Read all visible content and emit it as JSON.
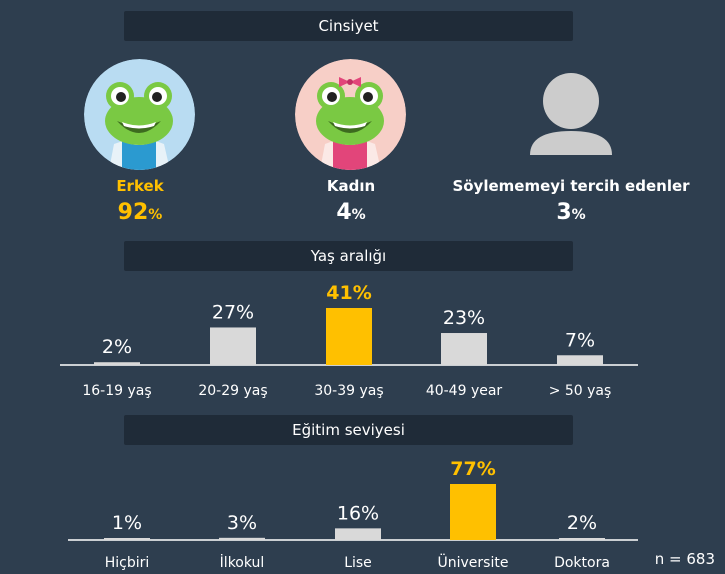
{
  "sections": {
    "gender": "Cinsiyet",
    "age": "Yaş aralığı",
    "education": "Eğitim seviyesi"
  },
  "gender": [
    {
      "label": "Erkek",
      "value": "92",
      "unit": "%",
      "icon": "frog-male-avatar",
      "highlight": true
    },
    {
      "label": "Kadın",
      "value": "4",
      "unit": "%",
      "icon": "frog-female-avatar",
      "highlight": false
    },
    {
      "label": "Söylememeyi tercih edenler",
      "value": "3",
      "unit": "%",
      "icon": "person-silhouette-icon",
      "highlight": false
    }
  ],
  "chart_data": [
    {
      "type": "bar",
      "title": "Yaş aralığı",
      "categories": [
        "16-19 yaş",
        "20-29 yaş",
        "30-39 yaş",
        "40-49 year",
        "> 50 yaş"
      ],
      "values": [
        2,
        27,
        41,
        23,
        7
      ],
      "labels": [
        "2%",
        "27%",
        "41%",
        "23%",
        "7%"
      ],
      "highlight_index": 2,
      "ylim": [
        0,
        41
      ]
    },
    {
      "type": "bar",
      "title": "Eğitim seviyesi",
      "categories": [
        "Hiçbiri",
        "İlkokul",
        "Lise",
        "Üniversite",
        "Doktora"
      ],
      "values": [
        1,
        3,
        16,
        77,
        2
      ],
      "labels": [
        "1%",
        "3%",
        "16%",
        "77%",
        "2%"
      ],
      "highlight_index": 3,
      "ylim": [
        0,
        77
      ]
    }
  ],
  "sample_size": "n = 683",
  "colors": {
    "background": "#2e3e4f",
    "header": "#1f2b38",
    "bar": "#d9d9d9",
    "highlight": "#ffc000",
    "text": "#ffffff"
  }
}
